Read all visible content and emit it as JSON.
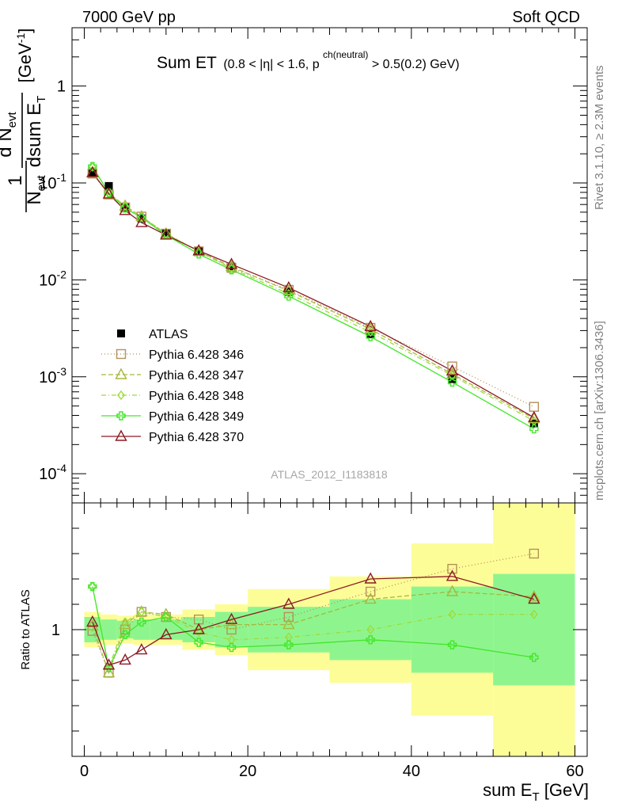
{
  "header": {
    "left": "7000 GeV pp",
    "right": "Soft QCD"
  },
  "side": {
    "rivet": "Rivet 3.1.10, ≥ 2.3M events",
    "source": "mcplots.cern.ch [arXiv:1306.3436]"
  },
  "watermark": "ATLAS_2012_I1183818",
  "plot_title": {
    "main": "Sum ET",
    "paren": "(0.8 < |η| < 1.6, p",
    "sup": "ch(neutral)",
    "tail": " > 0.5(0.2) GeV)"
  },
  "ylabel_upper": "1/N_evt dN_evt/dsum E_T [GeV^-1]",
  "ylabel_lower": "Ratio to ATLAS",
  "xlabel": "sum E_T [GeV]",
  "colors": {
    "data": "#000000",
    "band_inner": "#8ef58e",
    "band_outer": "#fdfd98",
    "s346": "#b5915a",
    "s347": "#a8b83e",
    "s348": "#9edb3d",
    "s349": "#44e62b",
    "s370": "#8c1a22"
  },
  "chart_data": {
    "type": "scatter",
    "x": [
      1,
      3,
      5,
      7,
      10,
      14,
      18,
      25,
      35,
      45,
      55
    ],
    "x_edges": [
      0,
      2,
      4,
      6,
      8,
      12,
      16,
      20,
      30,
      40,
      50,
      60
    ],
    "xlim": [
      -1.5,
      61.5
    ],
    "xticks": [
      0,
      20,
      40,
      60
    ],
    "ylim_upper": [
      5e-05,
      4
    ],
    "yscale_upper": "log",
    "ytick_labels_upper": [
      "1",
      "10^-1",
      "10^-2",
      "10^-3",
      "10^-4"
    ],
    "ylim_ratio": [
      0.5,
      1.5
    ],
    "ytick_labels_ratio": [
      "1"
    ],
    "legend_position": "left-middle",
    "data": {
      "name": "ATLAS",
      "values": [
        0.125,
        0.093,
        0.056,
        0.043,
        0.03,
        0.02,
        0.0137,
        0.0075,
        0.00275,
        0.00095,
        0.00033
      ],
      "band_inner": [
        0.05,
        0.04,
        0.035,
        0.04,
        0.04,
        0.05,
        0.07,
        0.09,
        0.12,
        0.17,
        0.22
      ],
      "band_outer": [
        0.07,
        0.06,
        0.055,
        0.06,
        0.06,
        0.08,
        0.1,
        0.16,
        0.21,
        0.34,
        0.5
      ]
    },
    "series": [
      {
        "name": "Pythia 6.428 346",
        "marker": "square",
        "dash": "1,3",
        "values": [
          0.125,
          0.076,
          0.056,
          0.045,
          0.03,
          0.0197,
          0.0133,
          0.0079,
          0.0032,
          0.00128,
          0.00049
        ],
        "ratio": [
          0.995,
          0.83,
          1.0,
          1.07,
          1.05,
          1.04,
          1.0,
          1.05,
          1.15,
          1.24,
          1.3
        ]
      },
      {
        "name": "Pythia 6.428 347",
        "marker": "triangle",
        "dash": "6,3",
        "values": [
          0.127,
          0.076,
          0.058,
          0.045,
          0.03,
          0.0197,
          0.0137,
          0.0077,
          0.0031,
          0.00107,
          0.00037
        ],
        "ratio": [
          1.015,
          0.83,
          1.02,
          1.07,
          1.06,
          1.0,
          1.02,
          1.02,
          1.12,
          1.15,
          1.13
        ]
      },
      {
        "name": "Pythia 6.428 348",
        "marker": "diamond",
        "dash": "6,3,1,3",
        "values": [
          0.146,
          0.079,
          0.058,
          0.045,
          0.03,
          0.0196,
          0.0131,
          0.0072,
          0.0029,
          0.00103,
          0.00035
        ],
        "ratio": [
          1.17,
          0.85,
          1.03,
          1.07,
          1.05,
          0.99,
          0.96,
          0.97,
          1.0,
          1.06,
          1.06
        ]
      },
      {
        "name": "Pythia 6.428 349",
        "marker": "cross",
        "dash": "",
        "values": [
          0.148,
          0.079,
          0.055,
          0.044,
          0.029,
          0.0185,
          0.0127,
          0.0068,
          0.0026,
          0.00088,
          0.00029
        ],
        "ratio": [
          1.17,
          0.85,
          0.98,
          1.03,
          1.05,
          0.95,
          0.93,
          0.94,
          0.96,
          0.94,
          0.89
        ]
      },
      {
        "name": "Pythia 6.428 370",
        "marker": "triangle",
        "dash": "",
        "values": [
          0.128,
          0.077,
          0.052,
          0.039,
          0.029,
          0.02,
          0.0145,
          0.0083,
          0.0033,
          0.00115,
          0.00038
        ],
        "ratio": [
          1.03,
          0.86,
          0.88,
          0.92,
          0.98,
          1.0,
          1.04,
          1.1,
          1.2,
          1.21,
          1.12
        ]
      }
    ]
  }
}
